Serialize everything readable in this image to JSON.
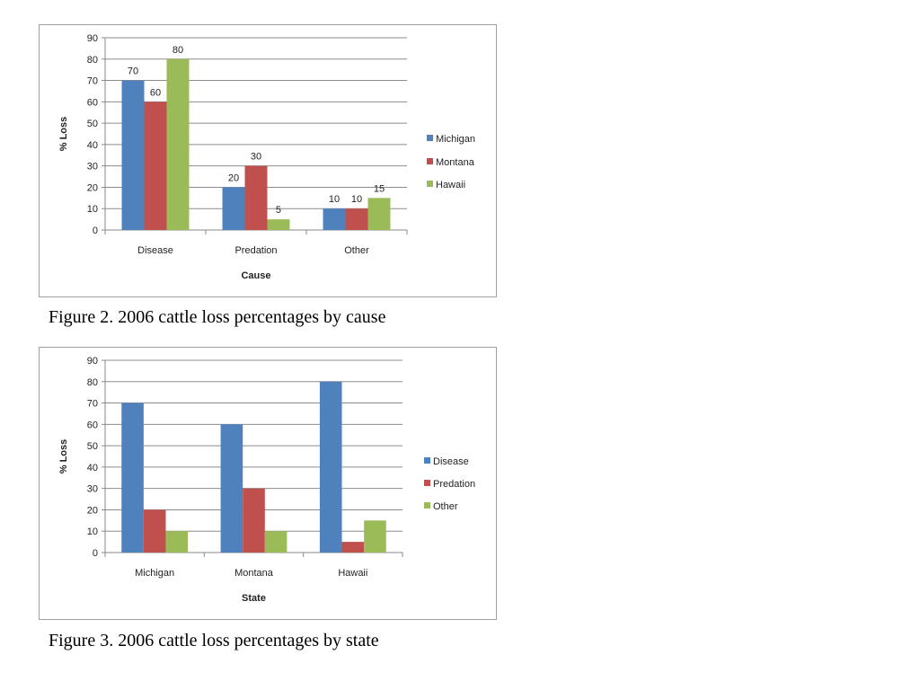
{
  "chart_data": [
    {
      "type": "bar",
      "title": "",
      "xlabel": "Cause",
      "ylabel": "% Loss",
      "ylim": [
        0,
        90
      ],
      "yticks": [
        0,
        10,
        20,
        30,
        40,
        50,
        60,
        70,
        80,
        90
      ],
      "categories": [
        "Disease",
        "Predation",
        "Other"
      ],
      "series": [
        {
          "name": "Michigan",
          "values": [
            70,
            20,
            10
          ],
          "color": "#4f81bd"
        },
        {
          "name": "Montana",
          "values": [
            60,
            30,
            10
          ],
          "color": "#c0504d"
        },
        {
          "name": "Hawaii",
          "values": [
            80,
            5,
            15
          ],
          "color": "#9bbb59"
        }
      ],
      "data_labels": true,
      "grid": true,
      "legend": "right",
      "caption": "Figure 2.  2006 cattle loss percentages by cause"
    },
    {
      "type": "bar",
      "title": "",
      "xlabel": "State",
      "ylabel": "% Loss",
      "ylim": [
        0,
        90
      ],
      "yticks": [
        0,
        10,
        20,
        30,
        40,
        50,
        60,
        70,
        80,
        90
      ],
      "categories": [
        "Michigan",
        "Montana",
        "Hawaii"
      ],
      "series": [
        {
          "name": "Disease",
          "values": [
            70,
            60,
            80
          ],
          "color": "#4f81bd"
        },
        {
          "name": "Predation",
          "values": [
            20,
            30,
            5
          ],
          "color": "#c0504d"
        },
        {
          "name": "Other",
          "values": [
            10,
            10,
            15
          ],
          "color": "#9bbb59"
        }
      ],
      "data_labels": false,
      "grid": true,
      "legend": "right",
      "caption": "Figure 3.  2006 cattle loss percentages by state"
    }
  ]
}
